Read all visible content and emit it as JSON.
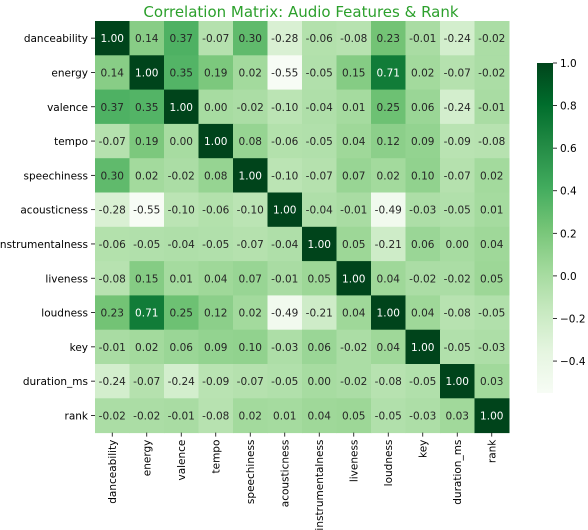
{
  "chart_data": {
    "type": "heatmap",
    "title": "Correlation Matrix: Audio Features & Rank",
    "title_color": "#2ca02c",
    "colormap": "Greens",
    "labels": [
      "danceability",
      "energy",
      "valence",
      "tempo",
      "speechiness",
      "acousticness",
      "instrumentalness",
      "liveness",
      "loudness",
      "key",
      "duration_ms",
      "rank"
    ],
    "values": [
      [
        1.0,
        0.14,
        0.37,
        -0.07,
        0.3,
        -0.28,
        -0.06,
        -0.08,
        0.23,
        -0.01,
        -0.24,
        -0.02
      ],
      [
        0.14,
        1.0,
        0.35,
        0.19,
        0.02,
        -0.55,
        -0.05,
        0.15,
        0.71,
        0.02,
        -0.07,
        -0.02
      ],
      [
        0.37,
        0.35,
        1.0,
        0.0,
        -0.02,
        -0.1,
        -0.04,
        0.01,
        0.25,
        0.06,
        -0.24,
        -0.01
      ],
      [
        -0.07,
        0.19,
        0.0,
        1.0,
        0.08,
        -0.06,
        -0.05,
        0.04,
        0.12,
        0.09,
        -0.09,
        -0.08
      ],
      [
        0.3,
        0.02,
        -0.02,
        0.08,
        1.0,
        -0.1,
        -0.07,
        0.07,
        0.02,
        0.1,
        -0.07,
        0.02
      ],
      [
        -0.28,
        -0.55,
        -0.1,
        -0.06,
        -0.1,
        1.0,
        -0.04,
        -0.01,
        -0.49,
        -0.03,
        -0.05,
        0.01
      ],
      [
        -0.06,
        -0.05,
        -0.04,
        -0.05,
        -0.07,
        -0.04,
        1.0,
        0.05,
        -0.21,
        0.06,
        0.0,
        0.04
      ],
      [
        -0.08,
        0.15,
        0.01,
        0.04,
        0.07,
        -0.01,
        0.05,
        1.0,
        0.04,
        -0.02,
        -0.02,
        0.05
      ],
      [
        0.23,
        0.71,
        0.25,
        0.12,
        0.02,
        -0.49,
        -0.21,
        0.04,
        1.0,
        0.04,
        -0.08,
        -0.05
      ],
      [
        -0.01,
        0.02,
        0.06,
        0.09,
        0.1,
        -0.03,
        0.06,
        -0.02,
        0.04,
        1.0,
        -0.05,
        -0.03
      ],
      [
        -0.24,
        -0.07,
        -0.24,
        -0.09,
        -0.07,
        -0.05,
        0.0,
        -0.02,
        -0.08,
        -0.05,
        1.0,
        0.03
      ],
      [
        -0.02,
        -0.02,
        -0.01,
        -0.08,
        0.02,
        0.01,
        0.04,
        0.05,
        -0.05,
        -0.03,
        0.03,
        1.0
      ]
    ],
    "vmin": -0.55,
    "vmax": 1.0,
    "colorbar_ticks": [
      1.0,
      0.8,
      0.6,
      0.4,
      0.2,
      0.0,
      -0.2,
      -0.4
    ],
    "colorbar_tick_labels": [
      "1.0",
      "0.8",
      "0.6",
      "0.4",
      "0.2",
      "0.0",
      "−0.2",
      "−0.4"
    ],
    "value_format": "2dp"
  }
}
